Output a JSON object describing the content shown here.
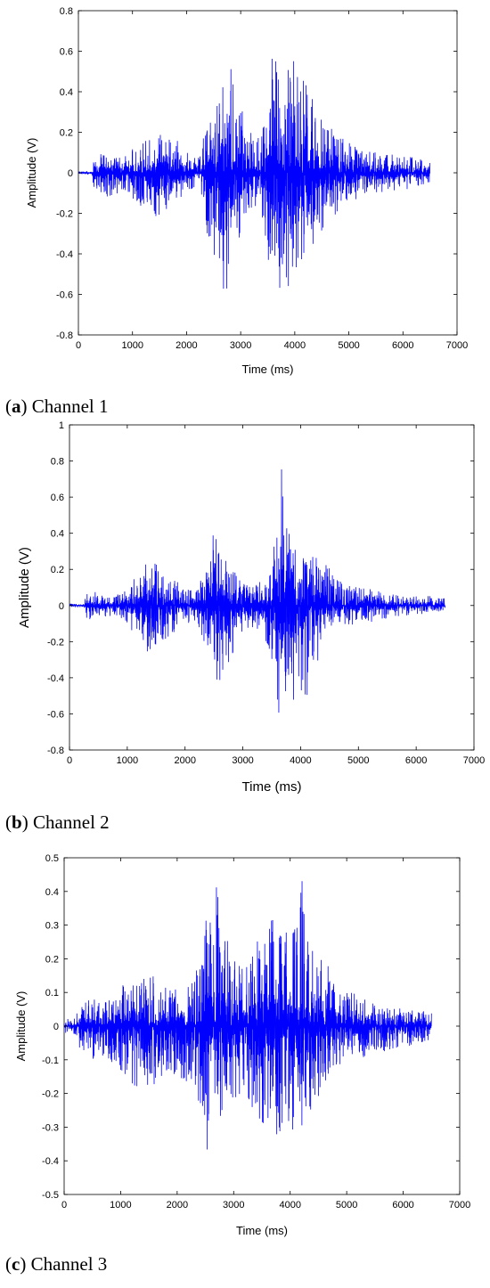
{
  "chart_data": [
    {
      "type": "line",
      "caption_letter": "a",
      "caption_text": "Channel 1",
      "xlabel": "Time (ms)",
      "ylabel": "Amplitude (V)",
      "xlim": [
        0,
        7000
      ],
      "ylim": [
        -0.8,
        0.8
      ],
      "x_ticks": [
        "0",
        "1000",
        "2000",
        "3000",
        "4000",
        "5000",
        "6000",
        "7000"
      ],
      "y_ticks": [
        "-0.8",
        "-0.6",
        "-0.4",
        "-0.2",
        "0",
        "0.2",
        "0.4",
        "0.6",
        "0.8"
      ],
      "grid": false,
      "color": "#0000ff",
      "series": [
        {
          "x": [
            0,
            250,
            300,
            500,
            800,
            1000,
            1200,
            1400,
            1600,
            1800,
            2000,
            2200,
            2350,
            2500,
            2600,
            2700,
            2800,
            2950,
            3100,
            3300,
            3450,
            3550,
            3620,
            3700,
            3800,
            3900,
            4000,
            4100,
            4200,
            4400,
            4600,
            4800,
            5000,
            5200,
            5500,
            5800,
            6100,
            6300,
            6500
          ],
          "ymax": [
            0.005,
            0.01,
            0.12,
            0.09,
            0.09,
            0.12,
            0.16,
            0.2,
            0.22,
            0.17,
            0.1,
            0.07,
            0.24,
            0.33,
            0.61,
            0.42,
            0.58,
            0.4,
            0.22,
            0.18,
            0.25,
            0.62,
            0.71,
            0.6,
            0.48,
            0.57,
            0.56,
            0.48,
            0.44,
            0.32,
            0.25,
            0.18,
            0.16,
            0.12,
            0.1,
            0.09,
            0.08,
            0.07,
            0.06
          ],
          "ymin": [
            -0.005,
            -0.01,
            -0.1,
            -0.12,
            -0.1,
            -0.13,
            -0.18,
            -0.22,
            -0.2,
            -0.15,
            -0.1,
            -0.08,
            -0.3,
            -0.4,
            -0.48,
            -0.72,
            -0.55,
            -0.38,
            -0.22,
            -0.2,
            -0.3,
            -0.67,
            -0.6,
            -0.58,
            -0.55,
            -0.62,
            -0.6,
            -0.54,
            -0.48,
            -0.35,
            -0.26,
            -0.2,
            -0.15,
            -0.12,
            -0.1,
            -0.09,
            -0.08,
            -0.07,
            -0.06
          ]
        }
      ]
    },
    {
      "type": "line",
      "caption_letter": "b",
      "caption_text": "Channel 2",
      "xlabel": "Time (ms)",
      "ylabel": "Amplitude (V)",
      "xlim": [
        0,
        7000
      ],
      "ylim": [
        -0.8,
        1
      ],
      "x_ticks": [
        "0",
        "1000",
        "2000",
        "3000",
        "4000",
        "5000",
        "6000",
        "7000"
      ],
      "y_ticks": [
        "-0.8",
        "-0.6",
        "-0.4",
        "-0.2",
        "0",
        "0.2",
        "0.4",
        "0.6",
        "0.8",
        "1"
      ],
      "grid": false,
      "color": "#0000ff",
      "series": [
        {
          "x": [
            0,
            250,
            300,
            500,
            800,
            1000,
            1200,
            1400,
            1600,
            1800,
            2000,
            2200,
            2400,
            2500,
            2600,
            2700,
            2800,
            3000,
            3200,
            3400,
            3500,
            3580,
            3620,
            3700,
            3800,
            3900,
            4000,
            4100,
            4200,
            4400,
            4600,
            4800,
            5000,
            5200,
            5500,
            5800,
            6100,
            6300,
            6500
          ],
          "ymax": [
            0.01,
            0.01,
            0.1,
            0.07,
            0.06,
            0.1,
            0.2,
            0.3,
            0.2,
            0.15,
            0.1,
            0.08,
            0.25,
            0.45,
            0.3,
            0.25,
            0.2,
            0.15,
            0.12,
            0.15,
            0.2,
            0.5,
            0.93,
            0.65,
            0.42,
            0.32,
            0.28,
            0.3,
            0.28,
            0.25,
            0.18,
            0.12,
            0.1,
            0.1,
            0.07,
            0.06,
            0.06,
            0.05,
            0.04
          ],
          "ymin": [
            -0.01,
            -0.01,
            -0.08,
            -0.07,
            -0.06,
            -0.1,
            -0.2,
            -0.3,
            -0.2,
            -0.15,
            -0.1,
            -0.1,
            -0.28,
            -0.4,
            -0.55,
            -0.4,
            -0.3,
            -0.15,
            -0.12,
            -0.2,
            -0.3,
            -0.58,
            -0.62,
            -0.55,
            -0.45,
            -0.55,
            -0.5,
            -0.6,
            -0.38,
            -0.25,
            -0.18,
            -0.12,
            -0.1,
            -0.1,
            -0.07,
            -0.06,
            -0.05,
            -0.04,
            -0.04
          ]
        }
      ]
    },
    {
      "type": "line",
      "caption_letter": "c",
      "caption_text": "Channel 3",
      "xlabel": "Time (ms)",
      "ylabel": "Amplitude (V)",
      "xlim": [
        0,
        7000
      ],
      "ylim": [
        -0.5,
        0.5
      ],
      "x_ticks": [
        "0",
        "1000",
        "2000",
        "3000",
        "4000",
        "5000",
        "6000",
        "7000"
      ],
      "y_ticks": [
        "-0.5",
        "-0.4",
        "-0.3",
        "-0.2",
        "-0.1",
        "0",
        "0.1",
        "0.2",
        "0.3",
        "0.4",
        "0.5"
      ],
      "grid": false,
      "color": "#0000ff",
      "series": [
        {
          "x": [
            0,
            200,
            300,
            500,
            800,
            1000,
            1200,
            1400,
            1600,
            1800,
            2000,
            2200,
            2400,
            2500,
            2600,
            2700,
            2800,
            3000,
            3200,
            3400,
            3600,
            3800,
            4000,
            4100,
            4200,
            4300,
            4400,
            4600,
            4800,
            5000,
            5200,
            5500,
            5800,
            6100,
            6300,
            6500
          ],
          "ymax": [
            0.02,
            0.03,
            0.07,
            0.08,
            0.08,
            0.12,
            0.14,
            0.16,
            0.15,
            0.12,
            0.11,
            0.13,
            0.2,
            0.3,
            0.44,
            0.43,
            0.3,
            0.2,
            0.18,
            0.25,
            0.33,
            0.3,
            0.33,
            0.36,
            0.47,
            0.36,
            0.28,
            0.2,
            0.14,
            0.1,
            0.1,
            0.08,
            0.06,
            0.05,
            0.05,
            0.04
          ],
          "ymin": [
            -0.02,
            -0.03,
            -0.09,
            -0.1,
            -0.1,
            -0.15,
            -0.18,
            -0.2,
            -0.18,
            -0.14,
            -0.15,
            -0.17,
            -0.25,
            -0.42,
            -0.4,
            -0.42,
            -0.35,
            -0.22,
            -0.2,
            -0.28,
            -0.35,
            -0.32,
            -0.3,
            -0.33,
            -0.36,
            -0.3,
            -0.26,
            -0.18,
            -0.14,
            -0.1,
            -0.1,
            -0.08,
            -0.07,
            -0.06,
            -0.05,
            -0.04
          ]
        }
      ]
    }
  ]
}
